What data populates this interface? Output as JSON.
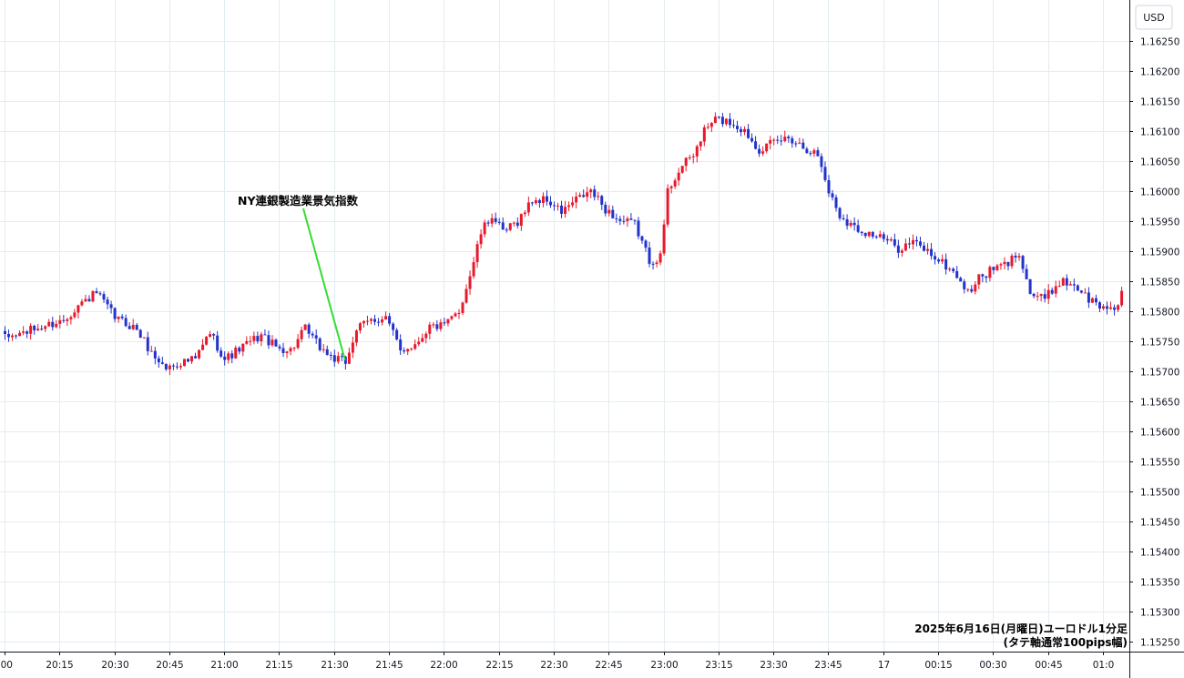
{
  "chart_data": {
    "type": "candlestick",
    "instrument": "EUR/USD",
    "timeframe": "1m",
    "currency_label": "USD",
    "ylim": [
      1.1524,
      1.163
    ],
    "y_ticks": [
      "1.16250",
      "1.16200",
      "1.16150",
      "1.16100",
      "1.16050",
      "1.16000",
      "1.15950",
      "1.15900",
      "1.15850",
      "1.15800",
      "1.15750",
      "1.15700",
      "1.15650",
      "1.15600",
      "1.15550",
      "1.15500",
      "1.15450",
      "1.15400",
      "1.15350",
      "1.15300",
      "1.15250"
    ],
    "x_ticks": [
      ":00",
      "20:15",
      "20:30",
      "20:45",
      "21:00",
      "21:15",
      "21:30",
      "21:45",
      "22:00",
      "22:15",
      "22:30",
      "22:45",
      "23:00",
      "23:15",
      "23:30",
      "23:45",
      "17",
      "00:15",
      "00:30",
      "00:45",
      "01:0"
    ],
    "colors": {
      "up": "#e8192c",
      "down": "#2233cc",
      "grid": "#e3ecf0",
      "axis": "#131722",
      "annotation_line": "#33dd33"
    },
    "annotation": {
      "text": "NY連銀製造業景気指数",
      "time_index": 93
    },
    "caption": [
      "2025年6月16日(月曜日)ユーロドル1分足",
      "(タテ軸通常100pips幅)"
    ],
    "price_path": [
      [
        0,
        1.15755
      ],
      [
        8,
        1.1577
      ],
      [
        16,
        1.15785
      ],
      [
        20,
        1.1581
      ],
      [
        25,
        1.1583
      ],
      [
        30,
        1.1579
      ],
      [
        36,
        1.1577
      ],
      [
        40,
        1.1573
      ],
      [
        44,
        1.15705
      ],
      [
        48,
        1.15715
      ],
      [
        52,
        1.1572
      ],
      [
        56,
        1.15765
      ],
      [
        60,
        1.1572
      ],
      [
        66,
        1.15745
      ],
      [
        70,
        1.1576
      ],
      [
        74,
        1.1574
      ],
      [
        78,
        1.15735
      ],
      [
        82,
        1.1577
      ],
      [
        86,
        1.1574
      ],
      [
        90,
        1.1572
      ],
      [
        93,
        1.15715
      ],
      [
        96,
        1.1577
      ],
      [
        100,
        1.15785
      ],
      [
        104,
        1.1579
      ],
      [
        108,
        1.15735
      ],
      [
        112,
        1.15745
      ],
      [
        116,
        1.15775
      ],
      [
        120,
        1.15775
      ],
      [
        124,
        1.158
      ],
      [
        127,
        1.1586
      ],
      [
        130,
        1.1593
      ],
      [
        133,
        1.1596
      ],
      [
        136,
        1.1593
      ],
      [
        140,
        1.1595
      ],
      [
        144,
        1.15985
      ],
      [
        148,
        1.15985
      ],
      [
        152,
        1.15965
      ],
      [
        156,
        1.15985
      ],
      [
        160,
        1.16
      ],
      [
        164,
        1.1597
      ],
      [
        168,
        1.1595
      ],
      [
        172,
        1.15945
      ],
      [
        176,
        1.15885
      ],
      [
        179,
        1.1589
      ],
      [
        181,
        1.16
      ],
      [
        184,
        1.16035
      ],
      [
        188,
        1.1606
      ],
      [
        191,
        1.161
      ],
      [
        194,
        1.1612
      ],
      [
        198,
        1.16115
      ],
      [
        202,
        1.161
      ],
      [
        206,
        1.1607
      ],
      [
        210,
        1.1608
      ],
      [
        214,
        1.1609
      ],
      [
        218,
        1.16075
      ],
      [
        222,
        1.1606
      ],
      [
        225,
        1.16
      ],
      [
        228,
        1.1596
      ],
      [
        232,
        1.1594
      ],
      [
        236,
        1.1593
      ],
      [
        240,
        1.1592
      ],
      [
        244,
        1.15905
      ],
      [
        248,
        1.15915
      ],
      [
        252,
        1.159
      ],
      [
        256,
        1.1588
      ],
      [
        260,
        1.1586
      ],
      [
        263,
        1.1583
      ],
      [
        266,
        1.15855
      ],
      [
        270,
        1.1587
      ],
      [
        274,
        1.1588
      ],
      [
        277,
        1.159
      ],
      [
        280,
        1.1583
      ],
      [
        284,
        1.1582
      ],
      [
        288,
        1.1585
      ],
      [
        292,
        1.15845
      ],
      [
        296,
        1.1582
      ],
      [
        300,
        1.15805
      ],
      [
        304,
        1.1581
      ],
      [
        305,
        1.15835
      ]
    ]
  }
}
